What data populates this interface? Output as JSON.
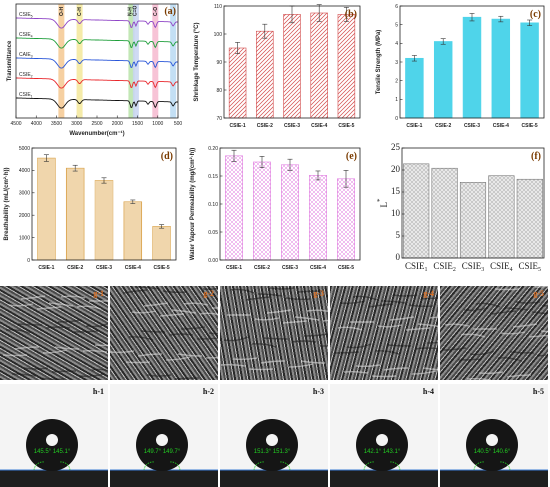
{
  "chart_data": [
    {
      "id": "a",
      "type": "line",
      "panel_label": "(a)",
      "xlabel": "Wavenumber(cm⁻¹)",
      "ylabel": "Transmittance",
      "xlim": [
        4500,
        500
      ],
      "x_ticks": [
        4500,
        4000,
        3500,
        3000,
        2500,
        2000,
        1500,
        1000,
        500
      ],
      "series": [
        {
          "name": "CSIE5",
          "color": "#8e44c6"
        },
        {
          "name": "CSIE4",
          "color": "#1e9e3a"
        },
        {
          "name": "CAIE3",
          "color": "#2855d8"
        },
        {
          "name": "CSIE2",
          "color": "#e8262b"
        },
        {
          "name": "CSIE1",
          "color": "#111111"
        }
      ],
      "band_labels": [
        "O-H",
        "C-H",
        "N-H",
        "C=O",
        "C-O"
      ],
      "bands": [
        {
          "x": 3380,
          "color": "#f5c890"
        },
        {
          "x": 2930,
          "color": "#f3e79a"
        },
        {
          "x": 1650,
          "color": "#b7e3a8"
        },
        {
          "x": 1540,
          "color": "#c7d3f1"
        },
        {
          "x": 1060,
          "color": "#f6b9cf"
        },
        {
          "x": 620,
          "color": "#b8d9f2"
        }
      ]
    },
    {
      "id": "b",
      "type": "bar",
      "panel_label": "(b)",
      "categories": [
        "CSIE-1",
        "CSIE-2",
        "CSIE-3",
        "CSIE-4",
        "CSIE-5"
      ],
      "values": [
        95,
        101,
        107,
        107.5,
        107
      ],
      "errors": [
        2,
        2.5,
        3,
        3,
        2.5
      ],
      "ylabel": "Shrinkage Temperature (°C)",
      "ylim": [
        70,
        110
      ],
      "y_ticks": [
        70,
        80,
        90,
        100,
        110
      ],
      "color": "#d24a4a",
      "pattern": "hatch"
    },
    {
      "id": "c",
      "type": "bar",
      "panel_label": "(c)",
      "categories": [
        "CSIE-1",
        "CSIE-2",
        "CSIE-3",
        "CSIE-4",
        "CSIE-5"
      ],
      "values": [
        3.2,
        4.1,
        5.4,
        5.3,
        5.1
      ],
      "errors": [
        0.15,
        0.15,
        0.2,
        0.15,
        0.15
      ],
      "ylabel": "Tensile Strength (MPa)",
      "ylim": [
        0,
        6
      ],
      "y_ticks": [
        0,
        1,
        2,
        3,
        4,
        5,
        6
      ],
      "color": "#4fd4ea",
      "pattern": "solid"
    },
    {
      "id": "d",
      "type": "bar",
      "panel_label": "(d)",
      "categories": [
        "CSIE-1",
        "CSIE-2",
        "CSIE-3",
        "CSIE-4",
        "CSIE-5"
      ],
      "values": [
        4550,
        4100,
        3550,
        2600,
        1500
      ],
      "errors": [
        150,
        130,
        120,
        80,
        80
      ],
      "ylabel": "Breathability (mL/(cm²·h))",
      "ylim": [
        0,
        5000
      ],
      "y_ticks": [
        0,
        1000,
        2000,
        3000,
        4000,
        5000
      ],
      "color": "#d9a24a",
      "pattern": "vlines"
    },
    {
      "id": "e",
      "type": "bar",
      "panel_label": "(e)",
      "categories": [
        "CSIE-1",
        "CSIE-2",
        "CSIE-3",
        "CSIE-4",
        "CSIE-5"
      ],
      "values": [
        0.186,
        0.175,
        0.17,
        0.151,
        0.145
      ],
      "errors": [
        0.01,
        0.01,
        0.01,
        0.008,
        0.015
      ],
      "ylabel": "Water Vapour Permeability (mg/(cm²·h))",
      "ylim": [
        0,
        0.2
      ],
      "y_ticks": [
        0.0,
        0.05,
        0.1,
        0.15,
        0.2
      ],
      "color": "#e07be0",
      "pattern": "crosshatch"
    },
    {
      "id": "f",
      "type": "bar",
      "panel_label": "(f)",
      "categories": [
        "CSIE1",
        "CSIE2",
        "CSIE3",
        "CSIE4",
        "CSIE5"
      ],
      "values": [
        21.4,
        20.4,
        17.2,
        18.7,
        17.9
      ],
      "ylabel": "L*",
      "ylim": [
        0,
        25
      ],
      "y_ticks": [
        0,
        5,
        10,
        15,
        20,
        25
      ],
      "color": "#9a9a9a",
      "pattern": "dense"
    }
  ],
  "sem_images": [
    {
      "label": "g-1"
    },
    {
      "label": "g-2"
    },
    {
      "label": "g-3"
    },
    {
      "label": "g-4"
    },
    {
      "label": "g-5"
    }
  ],
  "contact_angle_images": [
    {
      "label": "h-1",
      "angle_text": "145.5°  145.1°"
    },
    {
      "label": "h-2",
      "angle_text": "149.7°  149.7°"
    },
    {
      "label": "h-3",
      "angle_text": "151.3°  151.3°"
    },
    {
      "label": "h-4",
      "angle_text": "142.1°  143.1°"
    },
    {
      "label": "h-5",
      "angle_text": "140.5°  140.6°"
    }
  ],
  "colors": {
    "panel_label": "#7a3b00",
    "sem_label": "#e07020",
    "contact_label": "#111111",
    "angle_text": "#22cc22"
  }
}
